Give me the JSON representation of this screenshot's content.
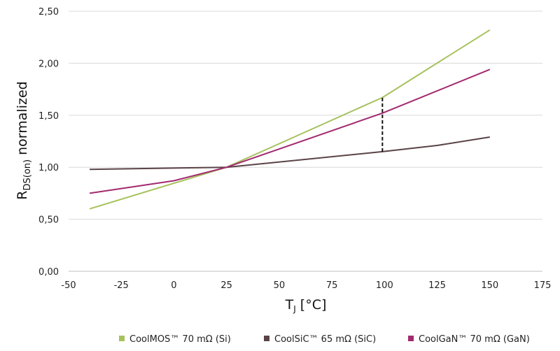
{
  "chart_data": {
    "type": "line",
    "x": [
      -40,
      0,
      25,
      100,
      150
    ],
    "xlim": [
      -50,
      175
    ],
    "ylim": [
      0,
      2.5
    ],
    "x_ticks": [
      "-50",
      "-25",
      "0",
      "25",
      "50",
      "75",
      "100",
      "125",
      "150",
      "175"
    ],
    "y_ticks": [
      "0,00",
      "0,50",
      "1,00",
      "1,50",
      "2,00",
      "2,50"
    ],
    "xlabel_main": "T",
    "xlabel_sub": "J",
    "xlabel_unit": " [°C]",
    "ylabel_main": "R",
    "ylabel_sub": "DS(on)",
    "ylabel_rest": " normalized",
    "grid": "horizontal",
    "legend_position": "bottom",
    "series": [
      {
        "name": "CoolMOS™ 70 mΩ (Si)",
        "color": "#a6c15d",
        "points": [
          [
            -40,
            0.6
          ],
          [
            25,
            1.0
          ],
          [
            99,
            1.67
          ],
          [
            150,
            2.32
          ]
        ]
      },
      {
        "name": "CoolSiC™ 65 mΩ (SiC)",
        "color": "#5a4347",
        "points": [
          [
            -40,
            0.98
          ],
          [
            25,
            1.0
          ],
          [
            99,
            1.15
          ],
          [
            125,
            1.21
          ],
          [
            150,
            1.29
          ]
        ]
      },
      {
        "name": "CoolGaN™ 70 mΩ (GaN)",
        "color": "#a32a6f",
        "points": [
          [
            -40,
            0.75
          ],
          [
            0,
            0.87
          ],
          [
            25,
            1.0
          ],
          [
            99,
            1.52
          ],
          [
            150,
            1.94
          ]
        ]
      }
    ],
    "annotation": {
      "type": "dashed-vertical",
      "x": 99,
      "y_from": 1.15,
      "y_to": 1.67,
      "color": "#111111"
    }
  }
}
